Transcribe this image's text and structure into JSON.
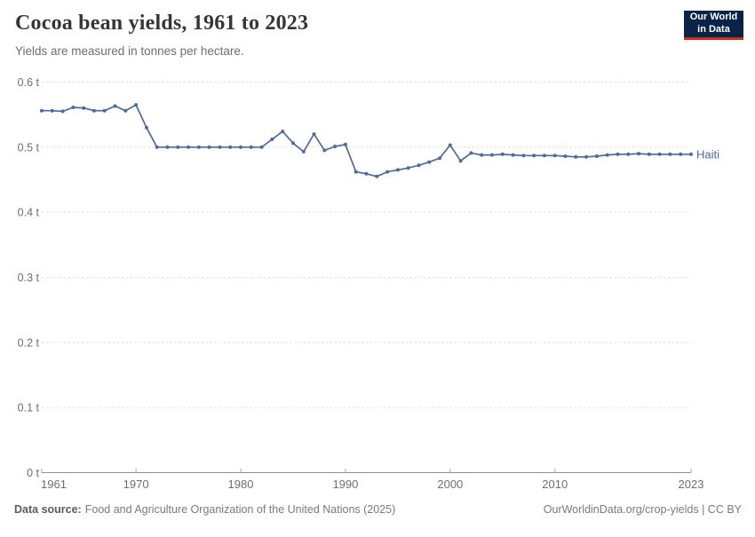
{
  "header": {
    "title": "Cocoa bean yields, 1961 to 2023",
    "subtitle": "Yields are measured in tonnes per hectare."
  },
  "logo": {
    "line1": "Our World",
    "line2": "in Data",
    "bg_color": "#0a2448",
    "bar_color": "#cf2e22"
  },
  "chart_data": {
    "type": "line",
    "title": "Cocoa bean yields, 1961 to 2023",
    "unit": "tonnes per hectare",
    "xlim": [
      1961,
      2023
    ],
    "ylim": [
      0,
      0.6
    ],
    "grid": "dashed-horizontal",
    "line_color": "#4c6a9c",
    "grid_color": "#dcdcdc",
    "axis_color": "#8f8f8f",
    "tick_label_color": "#6e6e6e",
    "y_ticks": [
      {
        "value": 0,
        "label": "0 t"
      },
      {
        "value": 0.1,
        "label": "0.1 t"
      },
      {
        "value": 0.2,
        "label": "0.2 t"
      },
      {
        "value": 0.3,
        "label": "0.3 t"
      },
      {
        "value": 0.4,
        "label": "0.4 t"
      },
      {
        "value": 0.5,
        "label": "0.5 t"
      },
      {
        "value": 0.6,
        "label": "0.6 t"
      }
    ],
    "x_ticks": [
      {
        "value": 1961,
        "label": "1961"
      },
      {
        "value": 1970,
        "label": "1970"
      },
      {
        "value": 1980,
        "label": "1980"
      },
      {
        "value": 1990,
        "label": "1990"
      },
      {
        "value": 2000,
        "label": "2000"
      },
      {
        "value": 2010,
        "label": "2010"
      },
      {
        "value": 2023,
        "label": "2023"
      }
    ],
    "series": [
      {
        "name": "Haiti",
        "x": [
          1961,
          1962,
          1963,
          1964,
          1965,
          1966,
          1967,
          1968,
          1969,
          1970,
          1971,
          1972,
          1973,
          1974,
          1975,
          1976,
          1977,
          1978,
          1979,
          1980,
          1981,
          1982,
          1983,
          1984,
          1985,
          1986,
          1987,
          1988,
          1989,
          1990,
          1991,
          1992,
          1993,
          1994,
          1995,
          1996,
          1997,
          1998,
          1999,
          2000,
          2001,
          2002,
          2003,
          2004,
          2005,
          2006,
          2007,
          2008,
          2009,
          2010,
          2011,
          2012,
          2013,
          2014,
          2015,
          2016,
          2017,
          2018,
          2019,
          2020,
          2021,
          2022,
          2023
        ],
        "values": [
          0.556,
          0.556,
          0.555,
          0.561,
          0.56,
          0.556,
          0.556,
          0.563,
          0.556,
          0.565,
          0.53,
          0.5,
          0.5,
          0.5,
          0.5,
          0.5,
          0.5,
          0.5,
          0.5,
          0.5,
          0.5,
          0.5,
          0.512,
          0.524,
          0.506,
          0.493,
          0.52,
          0.495,
          0.501,
          0.504,
          0.462,
          0.459,
          0.455,
          0.462,
          0.465,
          0.468,
          0.472,
          0.477,
          0.483,
          0.503,
          0.479,
          0.491,
          0.488,
          0.488,
          0.489,
          0.488,
          0.487,
          0.487,
          0.487,
          0.487,
          0.486,
          0.485,
          0.485,
          0.486,
          0.488,
          0.489,
          0.489,
          0.49,
          0.489,
          0.489,
          0.489,
          0.489,
          0.489
        ]
      }
    ],
    "end_label": "Haiti"
  },
  "footer": {
    "datasource_label": "Data source:",
    "datasource_text": "Food and Agriculture Organization of the United Nations (2025)",
    "attribution": "OurWorldinData.org/crop-yields | CC BY"
  }
}
